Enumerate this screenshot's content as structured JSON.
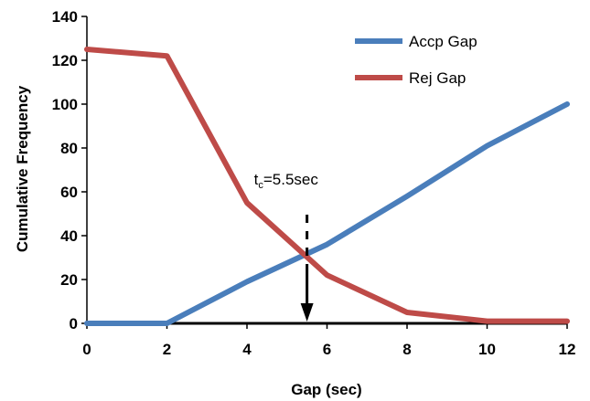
{
  "chart_data": {
    "type": "line",
    "xlabel": "Gap (sec)",
    "ylabel": "Cumulative Frequency",
    "xlim": [
      0,
      12
    ],
    "ylim": [
      0,
      140
    ],
    "x_ticks": [
      0,
      2,
      4,
      6,
      8,
      10,
      12
    ],
    "y_ticks": [
      0,
      20,
      40,
      60,
      80,
      100,
      120,
      140
    ],
    "legend_position": "top-right",
    "grid": false,
    "series": [
      {
        "name": "Accp Gap",
        "color": "#4a7ebb",
        "x": [
          0,
          2,
          4,
          6,
          8,
          10,
          12
        ],
        "y": [
          0,
          0,
          19,
          36,
          58,
          81,
          100
        ]
      },
      {
        "name": "Rej Gap",
        "color": "#be4b48",
        "x": [
          0,
          2,
          4,
          6,
          8,
          10,
          12
        ],
        "y": [
          125,
          122,
          55,
          22,
          5,
          1,
          1
        ]
      }
    ],
    "annotation": {
      "t": "t",
      "subscript": "c",
      "rest": "=5.5sec",
      "x_value": 5.5
    }
  }
}
